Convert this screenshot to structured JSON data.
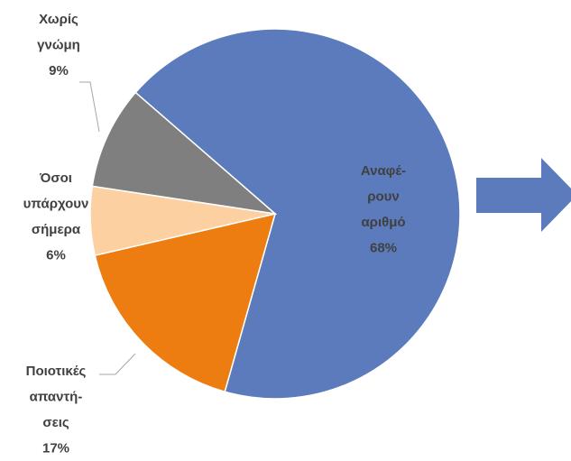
{
  "chart_data": {
    "type": "pie",
    "categories": [
      [
        "Αναφέ-",
        "ρουν",
        "αριθμό"
      ],
      [
        "Ποιοτικές",
        "απαντή-",
        "σεις"
      ],
      [
        "Όσοι",
        "υπάρχουν",
        "σήμερα"
      ],
      [
        "Χωρίς",
        "γνώμη"
      ]
    ],
    "values": [
      68,
      17,
      6,
      9
    ],
    "value_labels": [
      "68%",
      "17%",
      "6%",
      "9%"
    ],
    "colors": [
      "#5b7bbd",
      "#ed7d10",
      "#fdd0a2",
      "#7f7f7f"
    ]
  }
}
